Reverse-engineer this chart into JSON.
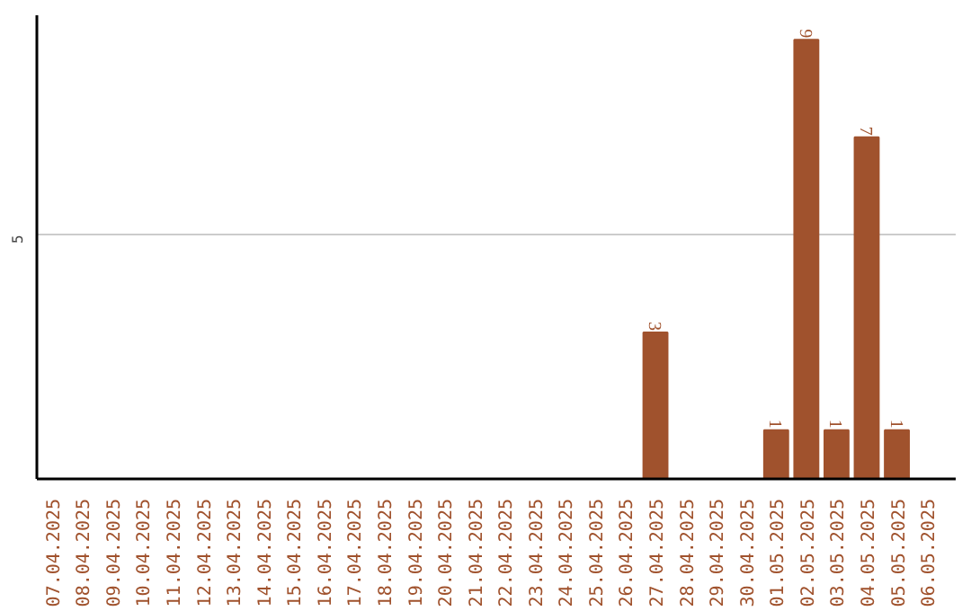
{
  "chart_data": {
    "type": "bar",
    "categories": [
      "07.04.2025",
      "08.04.2025",
      "09.04.2025",
      "10.04.2025",
      "11.04.2025",
      "12.04.2025",
      "13.04.2025",
      "14.04.2025",
      "15.04.2025",
      "16.04.2025",
      "17.04.2025",
      "18.04.2025",
      "19.04.2025",
      "20.04.2025",
      "21.04.2025",
      "22.04.2025",
      "23.04.2025",
      "24.04.2025",
      "25.04.2025",
      "26.04.2025",
      "27.04.2025",
      "28.04.2025",
      "29.04.2025",
      "30.04.2025",
      "01.05.2025",
      "02.05.2025",
      "03.05.2025",
      "04.05.2025",
      "05.05.2025",
      "06.05.2025"
    ],
    "values": [
      null,
      null,
      null,
      null,
      null,
      null,
      null,
      null,
      null,
      null,
      null,
      null,
      null,
      null,
      null,
      null,
      null,
      null,
      null,
      null,
      3,
      null,
      null,
      null,
      1,
      9,
      1,
      7,
      1,
      null
    ],
    "color": "#a0522d",
    "ylim": [
      0,
      9.5
    ],
    "yticks": [
      5
    ],
    "grid": "y",
    "data_labels": true
  }
}
